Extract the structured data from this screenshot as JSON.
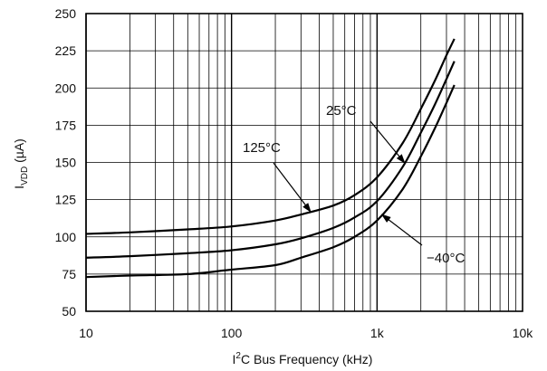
{
  "chart_data": {
    "type": "line",
    "title": "",
    "xlabel": {
      "pre": "I",
      "sup": "2",
      "post": "C Bus Frequency (kHz)"
    },
    "ylabel": {
      "main": "I",
      "sub": "VDD",
      "post": " (µA)"
    },
    "x_scale": "log",
    "xlim": [
      10,
      10000
    ],
    "ylim": [
      50,
      250
    ],
    "grid": true,
    "x_ticks": [
      {
        "value": 10,
        "label": "10"
      },
      {
        "value": 100,
        "label": "100"
      },
      {
        "value": 1000,
        "label": "1k"
      },
      {
        "value": 10000,
        "label": "10k"
      }
    ],
    "y_ticks": [
      {
        "value": 50,
        "label": "50"
      },
      {
        "value": 75,
        "label": "75"
      },
      {
        "value": 100,
        "label": "100"
      },
      {
        "value": 125,
        "label": "125"
      },
      {
        "value": 150,
        "label": "150"
      },
      {
        "value": 175,
        "label": "175"
      },
      {
        "value": 200,
        "label": "200"
      },
      {
        "value": 225,
        "label": "225"
      },
      {
        "value": 250,
        "label": "250"
      }
    ],
    "series": [
      {
        "name": "125°C",
        "x": [
          10,
          20,
          50,
          100,
          200,
          300,
          500,
          700,
          1000,
          1500,
          2000,
          2500,
          3000,
          3400
        ],
        "y": [
          102,
          103,
          105,
          107,
          111,
          115,
          121,
          128,
          140,
          163,
          186,
          205,
          222,
          233
        ]
      },
      {
        "name": "25°C",
        "x": [
          10,
          20,
          50,
          100,
          200,
          300,
          500,
          700,
          1000,
          1500,
          2000,
          2500,
          3000,
          3400
        ],
        "y": [
          86,
          87,
          89,
          91,
          95,
          99,
          106,
          113,
          124,
          147,
          170,
          189,
          206,
          218
        ]
      },
      {
        "name": "−40°C",
        "x": [
          10,
          20,
          50,
          100,
          200,
          300,
          500,
          700,
          1000,
          1500,
          2000,
          2500,
          3000,
          3400
        ],
        "y": [
          73,
          74,
          75,
          78,
          81,
          86,
          93,
          100,
          111,
          132,
          154,
          173,
          190,
          202
        ]
      }
    ],
    "annotations": [
      {
        "text": "125°C",
        "series": "125°C"
      },
      {
        "text": "25°C",
        "series": "25°C"
      },
      {
        "text": "−40°C",
        "series": "−40°C"
      }
    ]
  }
}
